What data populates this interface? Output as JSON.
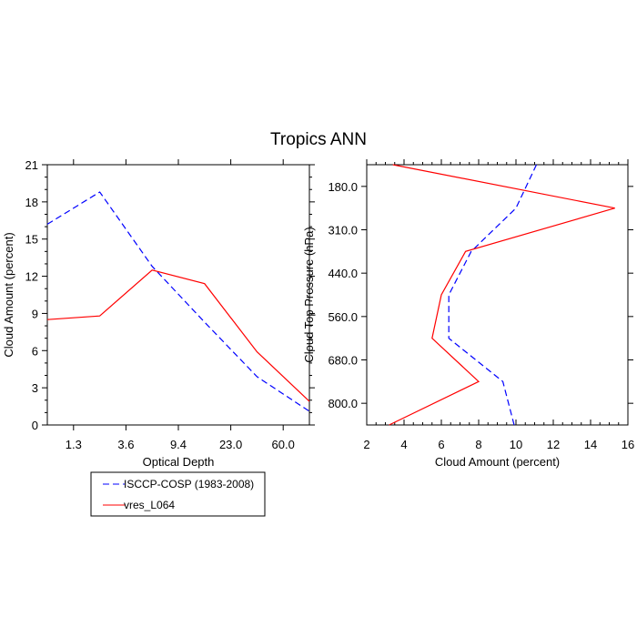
{
  "figure_title": "Tropics ANN",
  "legend": {
    "entries": [
      {
        "label": "ISCCP-COSP (1983-2008)",
        "color": "#0000ff",
        "dash": true
      },
      {
        "label": "vres_L064",
        "color": "#ff0000",
        "dash": false
      }
    ]
  },
  "chart_data": [
    {
      "type": "line",
      "title": "",
      "xlabel": "Optical Depth",
      "ylabel": "Cloud Amount (percent)",
      "x_categories": [
        "1.3",
        "3.6",
        "9.4",
        "23.0",
        "60.0"
      ],
      "ylim": [
        0,
        21
      ],
      "yticks": [
        0,
        3,
        6,
        9,
        12,
        15,
        18,
        21
      ],
      "series": [
        {
          "name": "ISCCP-COSP (1983-2008)",
          "color": "#0000ff",
          "dash": true,
          "x": [
            0.0,
            1.0,
            2.0,
            3.0,
            4.0,
            5.0
          ],
          "y": [
            16.2,
            18.8,
            12.8,
            8.3,
            3.9,
            1.1
          ]
        },
        {
          "name": "vres_L064",
          "color": "#ff0000",
          "dash": false,
          "x": [
            0.0,
            1.0,
            2.0,
            3.0,
            4.0,
            5.0
          ],
          "y": [
            8.5,
            8.8,
            12.5,
            11.4,
            5.9,
            1.9
          ]
        }
      ]
    },
    {
      "type": "line",
      "title": "",
      "xlabel": "Cloud Amount (percent)",
      "ylabel": "Cloud Top Pressure (hPa)",
      "xlim": [
        2,
        16
      ],
      "xticks": [
        2,
        4,
        6,
        8,
        10,
        12,
        14,
        16
      ],
      "y_categories": [
        "180.0",
        "310.0",
        "440.0",
        "560.0",
        "680.0",
        "800.0"
      ],
      "series": [
        {
          "name": "ISCCP-COSP (1983-2008)",
          "color": "#0000ff",
          "dash": true,
          "x": [
            11.1,
            10.0,
            7.6,
            6.4,
            6.4,
            9.3,
            9.9
          ],
          "y": [
            0.0,
            1.0,
            2.0,
            3.0,
            4.0,
            5.0,
            6.0
          ]
        },
        {
          "name": "vres_L064",
          "color": "#ff0000",
          "dash": false,
          "x": [
            3.4,
            15.3,
            7.3,
            6.0,
            5.5,
            8.0,
            3.2
          ],
          "y": [
            0.0,
            1.0,
            2.0,
            3.0,
            4.0,
            5.0,
            6.0
          ]
        }
      ]
    }
  ]
}
